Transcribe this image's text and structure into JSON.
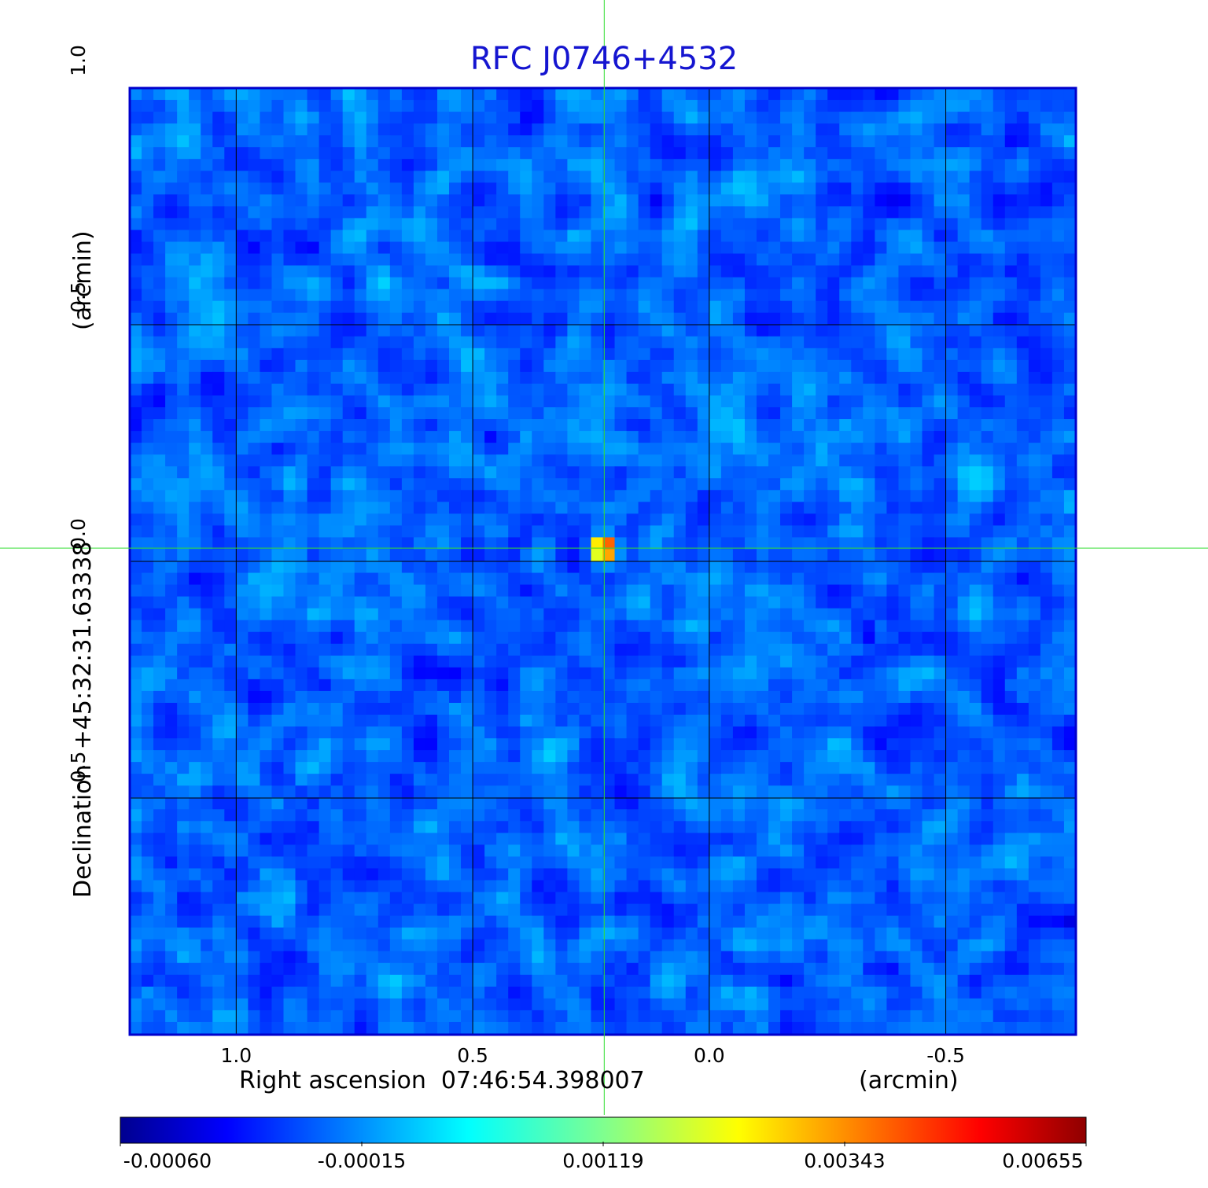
{
  "title": "RFC J0746+4532",
  "chart_data": {
    "type": "heatmap",
    "title": "RFC J0746+4532",
    "xlabel": "Right ascension  07:46:54.398007",
    "xunit": "(arcmin)",
    "ylabel": "Declination  +45:32:31.63338",
    "yunit": "(arcmin)",
    "xlim": [
      1.225,
      -0.775
    ],
    "ylim": [
      -1.0,
      1.0
    ],
    "xticks": [
      1.0,
      0.5,
      0.0,
      -0.5
    ],
    "xtick_labels": [
      "1.0",
      "0.5",
      "0.0",
      "-0.5"
    ],
    "yticks": [
      1.0,
      0.5,
      0.0,
      -0.5
    ],
    "ytick_labels": [
      "1.0",
      "0.5",
      "0.0",
      "-0.5"
    ],
    "grid": true,
    "crosshair": {
      "x": 0.222,
      "y": 0.028
    },
    "peak": {
      "x": 0.222,
      "y": 0.028,
      "value": 0.00655
    },
    "noise_minimum": {
      "x": -0.33,
      "y": -0.15
    },
    "colorbar": {
      "orientation": "horizontal",
      "colormap": "jet",
      "ticks": [
        -0.0006,
        -0.00015,
        0.00119,
        0.00343,
        0.00655
      ],
      "tick_labels": [
        "-0.00060",
        "-0.00015",
        "0.00119",
        "0.00343",
        "0.00655"
      ]
    },
    "colors": {
      "frame": "#0000cc",
      "title": "#1515d0",
      "grid": "#000000",
      "crosshair": "#33dd33"
    }
  }
}
